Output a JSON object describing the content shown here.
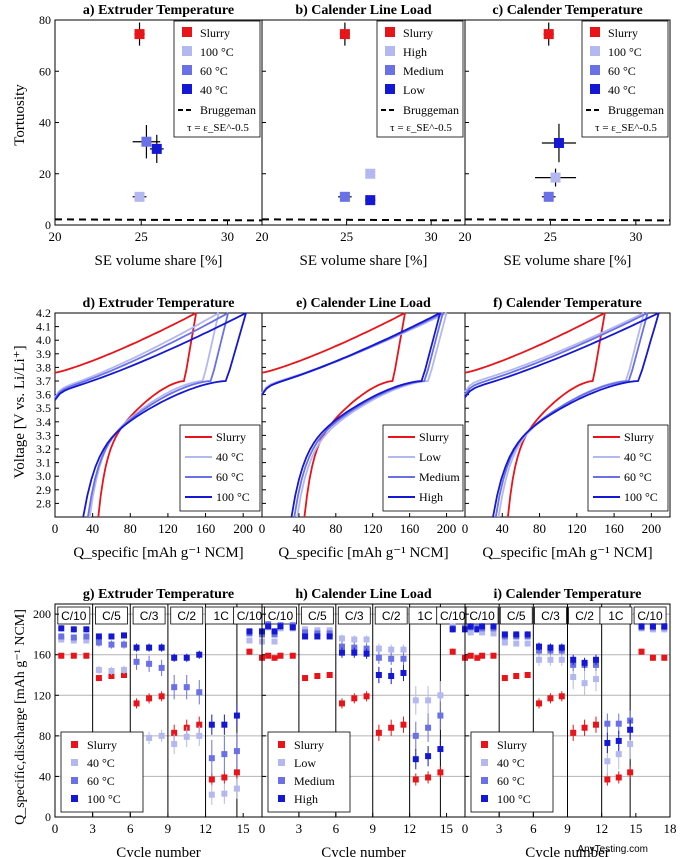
{
  "colors": {
    "slurry": "#e8141a",
    "c1": "#b4b8f0",
    "c2": "#6a70e6",
    "c3": "#1418d2",
    "grid": "#b4b4b4"
  },
  "figure": {
    "row1_ylabel": "Tortuosity",
    "row2_ylabel": "Voltage [V vs. Li/Li⁺]",
    "row3_ylabel": "Q_specific,discharge [mAh g⁻¹ NCM]",
    "row1_xlabel": "SE volume share [%]",
    "row2_xlabel": "Q_specific [mAh g⁻¹ NCM]",
    "row3_xlabel": "Cycle number",
    "bruggeman_label": "Bruggeman",
    "bruggeman_formula": "τ = ε_SE^-0.5",
    "rate_labels": [
      "C/10",
      "C/5",
      "C/3",
      "C/2",
      "1C",
      "C/10"
    ]
  },
  "chart_data": [
    {
      "id": "a",
      "type": "scatter",
      "title": "a) Extruder Temperature",
      "xlim": [
        20,
        32
      ],
      "ylim": [
        0,
        80
      ],
      "xticks": [
        20,
        25,
        30
      ],
      "yticks": [
        0,
        20,
        40,
        60,
        80
      ],
      "legend": [
        "Slurry",
        "100 °C",
        "60 °C",
        "40 °C"
      ],
      "points": [
        {
          "name": "Slurry",
          "x": 24.9,
          "y": 74.5,
          "xerr": 0.3,
          "yerr": 4.5
        },
        {
          "name": "100 °C",
          "x": 24.9,
          "y": 11.0,
          "xerr": 0.4,
          "yerr": 1.2
        },
        {
          "name": "60 °C",
          "x": 25.3,
          "y": 32.5,
          "xerr": 0.8,
          "yerr": 6.5
        },
        {
          "name": "40 °C",
          "x": 25.9,
          "y": 29.7,
          "xerr": 0.4,
          "yerr": 5.5
        }
      ],
      "bruggeman": {
        "x": [
          20,
          32
        ],
        "y": [
          2.2,
          1.8
        ]
      }
    },
    {
      "id": "b",
      "type": "scatter",
      "title": "b) Calender Line Load",
      "xlim": [
        20,
        32
      ],
      "ylim": [
        0,
        80
      ],
      "xticks": [
        20,
        25,
        30
      ],
      "yticks": [
        0,
        20,
        40,
        60,
        80
      ],
      "legend": [
        "Slurry",
        "High",
        "Medium",
        "Low"
      ],
      "points": [
        {
          "name": "Slurry",
          "x": 24.9,
          "y": 74.5,
          "xerr": 0.3,
          "yerr": 4.5
        },
        {
          "name": "High",
          "x": 26.4,
          "y": 20.0,
          "xerr": 0.2,
          "yerr": 1.5
        },
        {
          "name": "Medium",
          "x": 24.9,
          "y": 11.0,
          "xerr": 0.4,
          "yerr": 1.2
        },
        {
          "name": "Low",
          "x": 26.4,
          "y": 9.7,
          "xerr": 0.3,
          "yerr": 1.0
        }
      ],
      "bruggeman": {
        "x": [
          20,
          32
        ],
        "y": [
          2.2,
          1.8
        ]
      }
    },
    {
      "id": "c",
      "type": "scatter",
      "title": "c) Calender Temperature",
      "xlim": [
        20,
        32
      ],
      "ylim": [
        0,
        80
      ],
      "xticks": [
        20,
        25,
        30
      ],
      "yticks": [
        0,
        20,
        40,
        60,
        80
      ],
      "legend": [
        "Slurry",
        "100 °C",
        "60 °C",
        "40 °C"
      ],
      "points": [
        {
          "name": "Slurry",
          "x": 24.9,
          "y": 74.5,
          "xerr": 0.3,
          "yerr": 4.5
        },
        {
          "name": "100 °C",
          "x": 25.3,
          "y": 18.5,
          "xerr": 1.2,
          "yerr": 3.5
        },
        {
          "name": "60 °C",
          "x": 24.9,
          "y": 11.0,
          "xerr": 0.4,
          "yerr": 1.2
        },
        {
          "name": "40 °C",
          "x": 25.5,
          "y": 32.0,
          "xerr": 1.0,
          "yerr": 7.5
        }
      ],
      "bruggeman": {
        "x": [
          20,
          32
        ],
        "y": [
          2.2,
          1.8
        ]
      }
    },
    {
      "id": "d",
      "type": "line",
      "title": "d) Extruder Temperature",
      "xlim": [
        0,
        220
      ],
      "ylim": [
        2.7,
        4.2
      ],
      "xticks": [
        0,
        40,
        80,
        120,
        160,
        200
      ],
      "yticks": [
        2.8,
        2.9,
        3.0,
        3.1,
        3.2,
        3.3,
        3.4,
        3.5,
        3.6,
        3.7,
        3.8,
        3.9,
        4.0,
        4.1,
        4.2
      ],
      "legend": [
        "Slurry",
        "40 °C",
        "60 °C",
        "100 °C"
      ],
      "series": [
        {
          "name": "Slurry",
          "charge_end": 150,
          "charge_start_v": 3.76,
          "discharge_start": 150,
          "discharge_end": 46
        },
        {
          "name": "40 °C",
          "charge_end": 174,
          "charge_start_v": 3.64,
          "discharge_start": 174,
          "discharge_end": 37
        },
        {
          "name": "60 °C",
          "charge_end": 184,
          "charge_start_v": 3.63,
          "discharge_start": 184,
          "discharge_end": 35
        },
        {
          "name": "100 °C",
          "charge_end": 203,
          "charge_start_v": 3.62,
          "discharge_start": 203,
          "discharge_end": 30
        }
      ]
    },
    {
      "id": "e",
      "type": "line",
      "title": "e) Calender Line Load",
      "xlim": [
        0,
        220
      ],
      "ylim": [
        2.7,
        4.2
      ],
      "xticks": [
        0,
        40,
        80,
        120,
        160,
        200
      ],
      "yticks": [
        2.8,
        2.9,
        3.0,
        3.1,
        3.2,
        3.3,
        3.4,
        3.5,
        3.6,
        3.7,
        3.8,
        3.9,
        4.0,
        4.1,
        4.2
      ],
      "legend": [
        "Slurry",
        "Low",
        "Medium",
        "High"
      ],
      "series": [
        {
          "name": "Slurry",
          "charge_end": 155,
          "charge_start_v": 3.76,
          "discharge_start": 155,
          "discharge_end": 46
        },
        {
          "name": "Low",
          "charge_end": 200,
          "charge_start_v": 3.67,
          "discharge_start": 200,
          "discharge_end": 38
        },
        {
          "name": "Medium",
          "charge_end": 196,
          "charge_start_v": 3.66,
          "discharge_start": 196,
          "discharge_end": 35
        },
        {
          "name": "High",
          "charge_end": 193,
          "charge_start_v": 3.66,
          "discharge_start": 193,
          "discharge_end": 32
        }
      ]
    },
    {
      "id": "f",
      "type": "line",
      "title": "f) Calender Temperature",
      "xlim": [
        0,
        220
      ],
      "ylim": [
        2.7,
        4.2
      ],
      "xticks": [
        0,
        40,
        80,
        120,
        160,
        200
      ],
      "yticks": [
        2.8,
        2.9,
        3.0,
        3.1,
        3.2,
        3.3,
        3.4,
        3.5,
        3.6,
        3.7,
        3.8,
        3.9,
        4.0,
        4.1,
        4.2
      ],
      "legend": [
        "Slurry",
        "40 °C",
        "60 °C",
        "100 °C"
      ],
      "series": [
        {
          "name": "Slurry",
          "charge_end": 150,
          "charge_start_v": 3.76,
          "discharge_start": 150,
          "discharge_end": 46
        },
        {
          "name": "40 °C",
          "charge_end": 192,
          "charge_start_v": 3.68,
          "discharge_start": 192,
          "discharge_end": 36
        },
        {
          "name": "60 °C",
          "charge_end": 196,
          "charge_start_v": 3.66,
          "discharge_start": 196,
          "discharge_end": 33
        },
        {
          "name": "100 °C",
          "charge_end": 208,
          "charge_start_v": 3.64,
          "discharge_start": 208,
          "discharge_end": 30
        }
      ]
    },
    {
      "id": "g",
      "type": "scatter",
      "title": "g) Extruder Temperature",
      "xlim": [
        0,
        16.5
      ],
      "ylim": [
        0,
        210
      ],
      "xticks": [
        0,
        3,
        6,
        9,
        12,
        15
      ],
      "yticks": [
        0,
        40,
        80,
        120,
        160,
        200
      ],
      "rate_bounds": [
        3,
        6,
        9,
        12,
        14.5
      ],
      "legend": [
        "Slurry",
        "40 °C",
        "60 °C",
        "100 °C"
      ],
      "series": [
        {
          "name": "Slurry",
          "values": [
            159,
            159,
            159,
            137,
            139,
            140,
            112,
            117,
            119,
            83,
            88,
            91,
            37,
            39,
            44,
            163,
            157,
            157
          ],
          "errors": [
            2,
            2,
            2,
            3,
            3,
            3,
            5,
            5,
            5,
            8,
            8,
            8,
            6,
            6,
            6,
            3,
            3,
            3
          ]
        },
        {
          "name": "40 °C",
          "values": [
            175,
            174,
            174,
            145,
            144,
            145,
            72,
            78,
            80,
            72,
            79,
            80,
            22,
            23,
            28,
            174,
            173,
            173
          ],
          "errors": [
            3,
            3,
            3,
            4,
            4,
            4,
            6,
            6,
            6,
            10,
            10,
            10,
            10,
            10,
            10,
            3,
            3,
            3
          ]
        },
        {
          "name": "60 °C",
          "values": [
            178,
            177,
            178,
            172,
            170,
            170,
            153,
            151,
            147,
            128,
            128,
            123,
            58,
            62,
            65,
            181,
            180,
            180
          ],
          "errors": [
            3,
            3,
            3,
            4,
            4,
            4,
            8,
            8,
            8,
            12,
            12,
            12,
            18,
            18,
            18,
            3,
            3,
            3
          ]
        },
        {
          "name": "100 °C",
          "values": [
            186,
            185,
            185,
            178,
            178,
            179,
            167,
            167,
            167,
            157,
            157,
            160,
            91,
            91,
            100,
            183,
            183,
            183
          ],
          "errors": [
            3,
            3,
            3,
            3,
            3,
            3,
            4,
            4,
            4,
            4,
            4,
            4,
            10,
            10,
            10,
            3,
            3,
            3
          ]
        }
      ]
    },
    {
      "id": "h",
      "type": "scatter",
      "title": "h) Calender Line Load",
      "xlim": [
        0,
        16.5
      ],
      "ylim": [
        0,
        210
      ],
      "xticks": [
        0,
        3,
        6,
        9,
        12,
        15
      ],
      "yticks": [
        0,
        40,
        80,
        120,
        160,
        200
      ],
      "rate_bounds": [
        3,
        6,
        9,
        12,
        14.5
      ],
      "legend": [
        "Slurry",
        "Low",
        "Medium",
        "High"
      ],
      "series": [
        {
          "name": "Slurry",
          "values": [
            159,
            159,
            159,
            137,
            139,
            140,
            112,
            117,
            119,
            83,
            88,
            91,
            37,
            39,
            44,
            163,
            157,
            157
          ],
          "errors": [
            2,
            2,
            2,
            3,
            3,
            3,
            5,
            5,
            5,
            8,
            8,
            8,
            6,
            6,
            6,
            3,
            3,
            3
          ]
        },
        {
          "name": "Low",
          "values": [
            187,
            186,
            186,
            185,
            184,
            184,
            176,
            175,
            175,
            166,
            165,
            165,
            115,
            115,
            120,
            188,
            187,
            187
          ],
          "errors": [
            3,
            3,
            3,
            3,
            3,
            3,
            4,
            4,
            4,
            5,
            5,
            5,
            14,
            14,
            14,
            3,
            3,
            3
          ]
        },
        {
          "name": "Medium",
          "values": [
            190,
            189,
            189,
            182,
            181,
            181,
            168,
            167,
            166,
            157,
            156,
            156,
            80,
            88,
            100,
            186,
            186,
            186
          ],
          "errors": [
            3,
            3,
            3,
            3,
            3,
            3,
            5,
            5,
            5,
            6,
            6,
            6,
            14,
            14,
            14,
            3,
            3,
            3
          ]
        },
        {
          "name": "High",
          "values": [
            188,
            188,
            187,
            178,
            178,
            178,
            162,
            162,
            161,
            140,
            139,
            142,
            57,
            60,
            67,
            185,
            185,
            185
          ],
          "errors": [
            3,
            3,
            3,
            3,
            3,
            3,
            5,
            5,
            5,
            8,
            8,
            8,
            10,
            10,
            10,
            3,
            3,
            3
          ]
        }
      ]
    },
    {
      "id": "i",
      "type": "scatter",
      "title": "i) Calender Temperature",
      "xlim": [
        0,
        18
      ],
      "ylim": [
        0,
        210
      ],
      "xticks": [
        0,
        3,
        6,
        9,
        12,
        15,
        18
      ],
      "yticks": [
        0,
        40,
        80,
        120,
        160,
        200
      ],
      "rate_bounds": [
        3,
        6,
        9,
        12,
        14.5
      ],
      "legend": [
        "Slurry",
        "40 °C",
        "60 °C",
        "100 °C"
      ],
      "series": [
        {
          "name": "Slurry",
          "values": [
            159,
            159,
            159,
            137,
            139,
            140,
            112,
            117,
            119,
            83,
            88,
            91,
            37,
            39,
            44,
            163,
            157,
            157
          ],
          "errors": [
            2,
            2,
            2,
            3,
            3,
            3,
            5,
            5,
            5,
            8,
            8,
            8,
            6,
            6,
            6,
            3,
            3,
            3
          ]
        },
        {
          "name": "40 °C",
          "values": [
            182,
            182,
            181,
            172,
            171,
            171,
            155,
            155,
            155,
            138,
            132,
            136,
            55,
            62,
            72,
            186,
            185,
            185
          ],
          "errors": [
            3,
            3,
            3,
            3,
            3,
            3,
            6,
            6,
            6,
            12,
            12,
            12,
            15,
            15,
            15,
            3,
            3,
            3
          ]
        },
        {
          "name": "60 °C",
          "values": [
            187,
            186,
            186,
            178,
            178,
            178,
            164,
            164,
            164,
            150,
            150,
            150,
            92,
            92,
            95,
            187,
            187,
            187
          ],
          "errors": [
            3,
            3,
            3,
            3,
            3,
            3,
            4,
            4,
            4,
            6,
            6,
            6,
            10,
            10,
            10,
            3,
            3,
            3
          ]
        },
        {
          "name": "100 °C",
          "values": [
            188,
            188,
            188,
            180,
            180,
            180,
            168,
            167,
            167,
            155,
            152,
            155,
            73,
            75,
            86,
            188,
            188,
            188
          ],
          "errors": [
            3,
            3,
            3,
            3,
            3,
            3,
            4,
            4,
            4,
            5,
            5,
            5,
            10,
            10,
            10,
            3,
            3,
            3
          ]
        }
      ]
    }
  ]
}
